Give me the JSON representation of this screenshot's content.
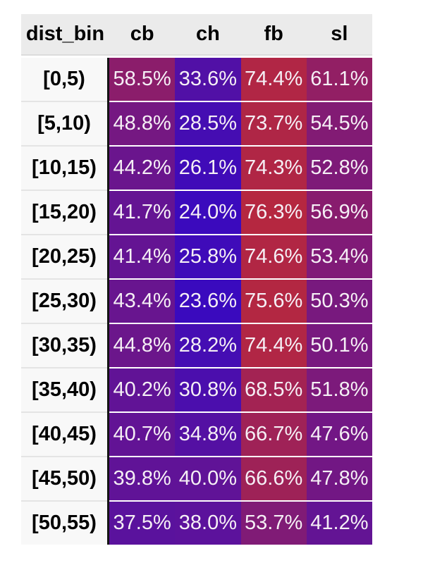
{
  "chart_data": {
    "type": "heatmap",
    "title": "",
    "rows_label": "dist_bin",
    "columns": [
      "cb",
      "ch",
      "fb",
      "sl"
    ],
    "rows": [
      "[0,5)",
      "[5,10)",
      "[10,15)",
      "[15,20)",
      "[20,25)",
      "[25,30)",
      "[30,35)",
      "[35,40)",
      "[40,45)",
      "[45,50)",
      "[50,55)"
    ],
    "values_percent": [
      [
        58.5,
        33.6,
        74.4,
        61.1
      ],
      [
        48.8,
        28.5,
        73.7,
        54.5
      ],
      [
        44.2,
        26.1,
        74.3,
        52.8
      ],
      [
        41.7,
        24.0,
        76.3,
        56.9
      ],
      [
        41.4,
        25.8,
        74.6,
        53.4
      ],
      [
        43.4,
        23.6,
        75.6,
        50.3
      ],
      [
        44.8,
        28.2,
        74.4,
        50.1
      ],
      [
        40.2,
        30.8,
        68.5,
        51.8
      ],
      [
        40.7,
        34.8,
        66.7,
        47.6
      ],
      [
        39.8,
        40.0,
        66.6,
        47.8
      ],
      [
        37.5,
        38.0,
        53.7,
        41.2
      ]
    ],
    "value_format": "one_decimal_percent",
    "legend": "none",
    "grid": "off",
    "color_scale": {
      "type": "linear",
      "domain": [
        23.6,
        76.3
      ],
      "range": [
        "#3a0abe",
        "#b52740"
      ]
    }
  },
  "ui_colors": {
    "page_bg": "#ffffff",
    "header_bg": "#ebebeb",
    "header_text": "#000000",
    "header_border": "#dcdcdc",
    "label_bg": "#f8f8f8",
    "label_text": "#000000",
    "label_separator": "#e4e4e4",
    "row_separator": "#ffffff",
    "column_divider": "#141414",
    "value_text": "#f5eff5"
  }
}
